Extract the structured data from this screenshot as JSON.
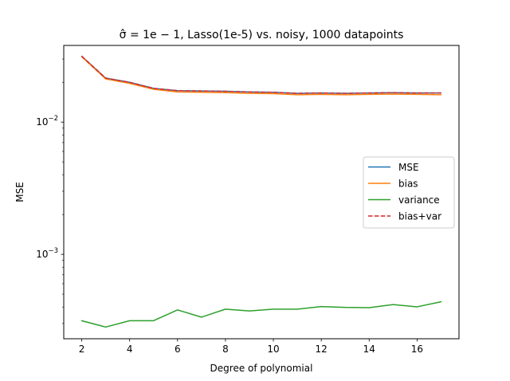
{
  "chart_data": {
    "type": "line",
    "title": "σ̂ = 1e − 1, Lasso(1e-5) vs. noisy, 1000 datapoints",
    "xlabel": "Degree of polynomial",
    "ylabel": "MSE",
    "yscale": "log",
    "xlim": [
      1.25,
      17.75
    ],
    "ylim": [
      0.00023,
      0.038
    ],
    "xticks": [
      2,
      4,
      6,
      8,
      10,
      12,
      14,
      16
    ],
    "yticks": [
      {
        "value": 0.001,
        "base": "10",
        "exp": "−3"
      },
      {
        "value": 0.01,
        "base": "10",
        "exp": "−2"
      }
    ],
    "grid": false,
    "legend_position": "center-right",
    "x": [
      2,
      3,
      4,
      5,
      6,
      7,
      8,
      9,
      10,
      11,
      12,
      13,
      14,
      15,
      16,
      17
    ],
    "series": [
      {
        "name": "MSE",
        "color": "#1f77b4",
        "dash": "solid",
        "values": [
          0.0315,
          0.0215,
          0.02,
          0.018,
          0.0173,
          0.0172,
          0.0171,
          0.0169,
          0.0168,
          0.0165,
          0.0166,
          0.0165,
          0.0166,
          0.0167,
          0.0166,
          0.0166
        ]
      },
      {
        "name": "bias",
        "color": "#ff7f0e",
        "dash": "solid",
        "values": [
          0.0312,
          0.0212,
          0.0196,
          0.0177,
          0.0169,
          0.0168,
          0.0167,
          0.0165,
          0.0164,
          0.0161,
          0.0162,
          0.0161,
          0.0162,
          0.0163,
          0.0162,
          0.0161
        ]
      },
      {
        "name": "variance",
        "color": "#2ca02c",
        "dash": "solid",
        "values": [
          0.000315,
          0.000282,
          0.000315,
          0.000315,
          0.00038,
          0.000335,
          0.000385,
          0.000373,
          0.000385,
          0.000385,
          0.000403,
          0.000397,
          0.000395,
          0.000417,
          0.000401,
          0.000438
        ]
      },
      {
        "name": "bias+var",
        "color": "#d62728",
        "dash": "dashed",
        "values": [
          0.0315,
          0.0215,
          0.02,
          0.018,
          0.0173,
          0.0172,
          0.0171,
          0.0169,
          0.0168,
          0.0165,
          0.0166,
          0.0165,
          0.0166,
          0.0167,
          0.0166,
          0.0166
        ]
      }
    ]
  }
}
